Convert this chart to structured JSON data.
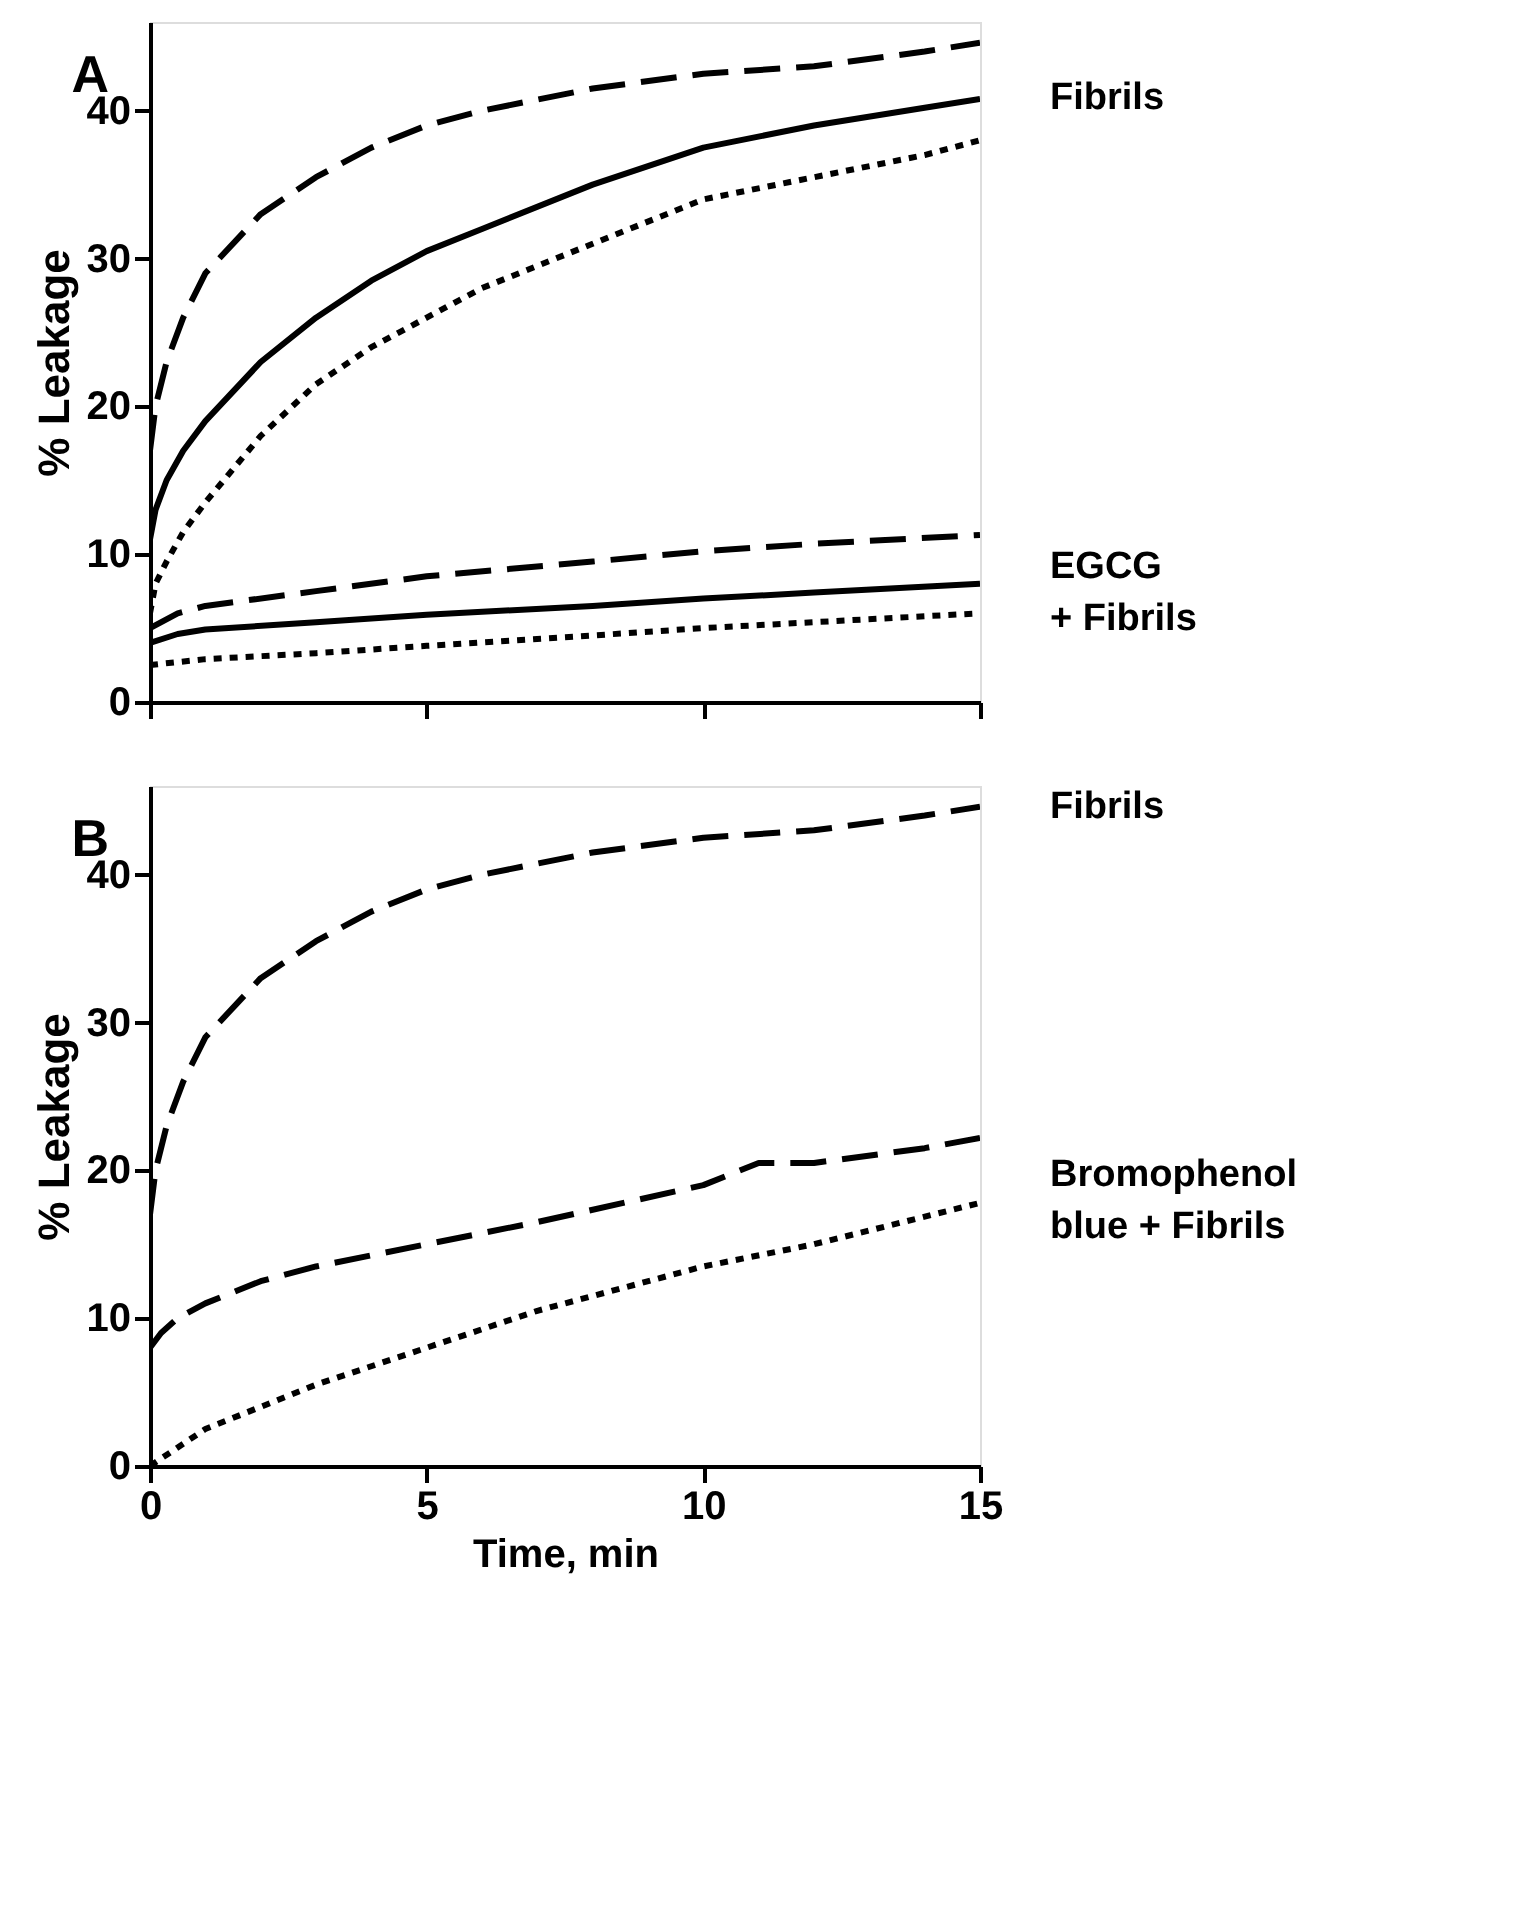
{
  "chart_data": [
    {
      "type": "line",
      "title": "A",
      "ylabel": "% Leakage",
      "xlim": [
        0,
        15
      ],
      "xticks": [
        0,
        5,
        10,
        15
      ],
      "ylim": [
        0,
        46
      ],
      "yticks": [
        0,
        10,
        20,
        30,
        40
      ],
      "tick_labels": "y",
      "grid": false,
      "annotations": [
        "Fibrils",
        "EGCG\n+ Fibrils"
      ],
      "series": [
        {
          "color": "#000000",
          "line_style": "dashed",
          "x": [
            0,
            0.1,
            0.3,
            0.6,
            1,
            2,
            3,
            4,
            5,
            6,
            8,
            10,
            12,
            14,
            15
          ],
          "values": [
            17,
            20,
            23,
            26,
            29,
            33,
            35.5,
            37.5,
            39,
            40,
            41.5,
            42.5,
            43,
            44,
            44.6
          ]
        },
        {
          "color": "#000000",
          "line_style": "solid",
          "x": [
            0,
            0.1,
            0.3,
            0.6,
            1,
            2,
            3,
            4,
            5,
            6,
            8,
            10,
            12,
            14,
            15
          ],
          "values": [
            11,
            13,
            15,
            17,
            19,
            23,
            26,
            28.5,
            30.5,
            32,
            35,
            37.5,
            39,
            40.2,
            40.8
          ]
        },
        {
          "color": "#000000",
          "line_style": "dotted",
          "x": [
            0,
            0.1,
            0.3,
            0.6,
            1,
            2,
            3,
            4,
            5,
            6,
            8,
            10,
            12,
            14,
            15
          ],
          "values": [
            6,
            8,
            9.5,
            11.5,
            13.5,
            18,
            21.5,
            24,
            26,
            28,
            31,
            34,
            35.5,
            37,
            38
          ]
        },
        {
          "color": "#000000",
          "line_style": "dashed",
          "x": [
            0,
            0.5,
            1,
            3,
            5,
            8,
            10,
            12,
            15
          ],
          "values": [
            5,
            6,
            6.5,
            7.5,
            8.5,
            9.5,
            10.2,
            10.7,
            11.3
          ]
        },
        {
          "color": "#000000",
          "line_style": "solid",
          "x": [
            0,
            0.5,
            1,
            3,
            5,
            8,
            10,
            12,
            15
          ],
          "values": [
            4,
            4.6,
            4.9,
            5.4,
            5.9,
            6.5,
            7,
            7.4,
            8
          ]
        },
        {
          "color": "#000000",
          "line_style": "dotted",
          "x": [
            0,
            0.5,
            1,
            3,
            5,
            8,
            10,
            12,
            15
          ],
          "values": [
            2.5,
            2.7,
            2.9,
            3.3,
            3.8,
            4.5,
            5,
            5.4,
            6
          ]
        }
      ]
    },
    {
      "type": "line",
      "title": "B",
      "xlabel": "Time, min",
      "ylabel": "% Leakage",
      "xlim": [
        0,
        15
      ],
      "xticks": [
        0,
        5,
        10,
        15
      ],
      "ylim": [
        0,
        46
      ],
      "yticks": [
        0,
        10,
        20,
        30,
        40
      ],
      "grid": false,
      "annotations": [
        "Fibrils",
        "Bromophenol\nblue + Fibrils"
      ],
      "series": [
        {
          "color": "#000000",
          "line_style": "dashed",
          "x": [
            0,
            0.1,
            0.3,
            0.6,
            1,
            2,
            3,
            4,
            5,
            6,
            8,
            10,
            12,
            14,
            15
          ],
          "values": [
            17,
            20,
            23,
            26,
            29,
            33,
            35.5,
            37.5,
            39,
            40,
            41.5,
            42.5,
            43,
            44,
            44.6
          ]
        },
        {
          "color": "#000000",
          "line_style": "dashed",
          "x": [
            0,
            0.2,
            0.5,
            1,
            2,
            3,
            5,
            7,
            10,
            11,
            12,
            14,
            15
          ],
          "values": [
            8,
            9,
            10,
            11,
            12.5,
            13.5,
            15,
            16.5,
            19,
            20.5,
            20.5,
            21.5,
            22.2
          ]
        },
        {
          "color": "#000000",
          "line_style": "dotted",
          "x": [
            0,
            1,
            2,
            3,
            5,
            7,
            10,
            12,
            15
          ],
          "values": [
            0,
            2.5,
            4,
            5.5,
            8,
            10.5,
            13.5,
            15,
            17.8
          ]
        }
      ]
    }
  ]
}
